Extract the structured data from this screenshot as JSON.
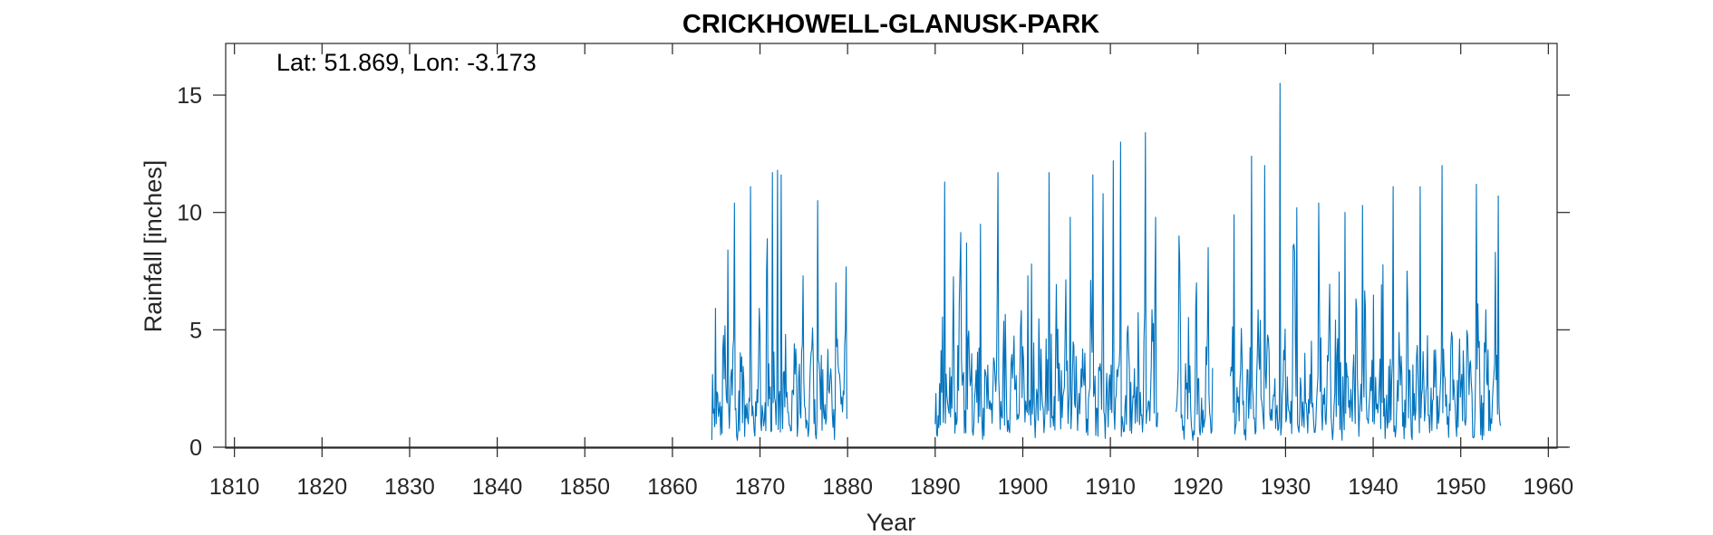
{
  "chart_data": {
    "type": "line",
    "title": "CRICKHOWELL-GLANUSK-PARK",
    "annotation": "Lat: 51.869, Lon: -3.173",
    "xlabel": "Year",
    "ylabel": "Rainfall [inches]",
    "xlim": [
      1809,
      1961
    ],
    "ylim": [
      0,
      17.2
    ],
    "xticks": [
      1810,
      1820,
      1830,
      1840,
      1850,
      1860,
      1870,
      1880,
      1890,
      1900,
      1910,
      1920,
      1930,
      1940,
      1950,
      1960
    ],
    "yticks": [
      0,
      5,
      10,
      15
    ],
    "grid": false,
    "line_color": "#0072bd",
    "sampling": "monthly",
    "segments": [
      {
        "x_start": 1864.5,
        "x_end": 1879.9,
        "peaks": [
          [
            1866.3,
            8.4
          ],
          [
            1867.1,
            10.4
          ],
          [
            1868.9,
            11.1
          ],
          [
            1871.4,
            11.7
          ],
          [
            1872.0,
            11.8
          ],
          [
            1872.4,
            11.6
          ],
          [
            1874.9,
            7.3
          ],
          [
            1876.6,
            10.5
          ],
          [
            1878.7,
            7.0
          ]
        ]
      },
      {
        "x_start": 1890.0,
        "x_end": 1915.4,
        "peaks": [
          [
            1891.1,
            11.3
          ],
          [
            1893.6,
            8.7
          ],
          [
            1895.2,
            9.5
          ],
          [
            1897.2,
            11.7
          ],
          [
            1900.6,
            7.3
          ],
          [
            1903.0,
            11.7
          ],
          [
            1905.4,
            9.8
          ],
          [
            1908.0,
            11.6
          ],
          [
            1909.2,
            10.8
          ],
          [
            1910.3,
            12.2
          ],
          [
            1911.2,
            13.0
          ],
          [
            1914.0,
            13.4
          ],
          [
            1915.2,
            9.8
          ]
        ]
      },
      {
        "x_start": 1917.5,
        "x_end": 1921.7,
        "peaks": [
          [
            1917.8,
            9.0
          ],
          [
            1919.8,
            7.0
          ],
          [
            1921.2,
            8.5
          ]
        ]
      },
      {
        "x_start": 1923.7,
        "x_end": 1954.5,
        "peaks": [
          [
            1924.1,
            9.9
          ],
          [
            1926.1,
            12.4
          ],
          [
            1927.6,
            12.0
          ],
          [
            1929.4,
            15.5
          ],
          [
            1931.3,
            10.2
          ],
          [
            1933.8,
            10.4
          ],
          [
            1936.8,
            10.0
          ],
          [
            1938.8,
            10.3
          ],
          [
            1942.3,
            11.1
          ],
          [
            1945.4,
            11.1
          ],
          [
            1947.9,
            12.0
          ],
          [
            1951.8,
            11.2
          ],
          [
            1954.3,
            10.7
          ]
        ]
      }
    ]
  }
}
